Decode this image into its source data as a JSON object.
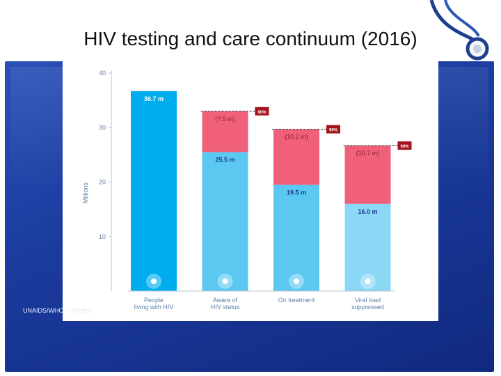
{
  "slide": {
    "title": "HIV testing and care continuum (2016)",
    "source": "UNAIDS/WHO estimates"
  },
  "colors": {
    "panel_blue": "#1f45a8",
    "bar_cyan": "#00aeef",
    "bar_light": "#5bc8f2",
    "bar_lighter": "#8ad8f5",
    "gap_pink": "#f0607a",
    "target_marker": "#a3141c"
  },
  "chart_data": {
    "type": "bar",
    "ylabel": "Millions",
    "ylim": [
      0,
      40
    ],
    "yticks": [
      10,
      20,
      30,
      40
    ],
    "categories": [
      {
        "line1": "People",
        "line2": "living with HIV",
        "icon": "ribbon-icon"
      },
      {
        "line1": "Aware of",
        "line2": "HIV status",
        "icon": "person-icon"
      },
      {
        "line1": "On treatment",
        "line2": "",
        "icon": "pills-icon"
      },
      {
        "line1": "Viral load",
        "line2": "suppressed",
        "icon": "virus-icon"
      }
    ],
    "series": [
      {
        "values": [
          36.7,
          25.5,
          19.5,
          16.0
        ],
        "labels": [
          "36.7 m",
          "25.5 m",
          "19.5 m",
          "16.0 m"
        ]
      },
      {
        "values": [
          0,
          7.5,
          10.2,
          10.7
        ],
        "labels": [
          "",
          "(7.5 m)",
          "(10.2 m)",
          "(10.7 m)"
        ]
      }
    ],
    "targets": [
      {
        "category_index": 1,
        "value": 33.0,
        "label": "90%"
      },
      {
        "category_index": 2,
        "value": 29.7,
        "label": "90%"
      },
      {
        "category_index": 3,
        "value": 26.7,
        "label": "90%"
      }
    ],
    "grid": false
  }
}
